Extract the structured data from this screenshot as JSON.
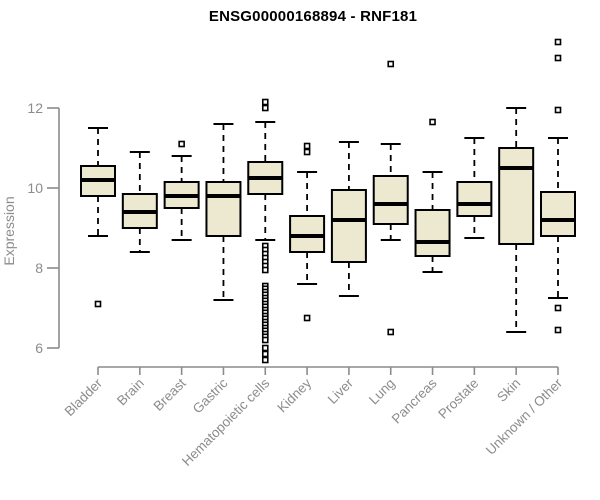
{
  "title": "ENSG00000168894 - RNF181",
  "style": {
    "box_fill": "#EDE8D0",
    "box_border": "#000000",
    "median_color": "#000000",
    "whisker_color": "#000000",
    "outlier_stroke": "#000000",
    "outlier_fill": "#FFFFFF",
    "axis_color": "#8C8C8C",
    "label_color": "#8C8C8C",
    "title_color": "#000000",
    "background": "#FFFFFF"
  },
  "chart_data": {
    "type": "boxplot",
    "title": "ENSG00000168894 - RNF181",
    "ylabel": "Expression",
    "xlabel": "",
    "grid": false,
    "legend": false,
    "yticks": [
      6,
      8,
      10,
      12
    ],
    "axis_ylim": [
      6,
      12
    ],
    "data_ylim": [
      5.7,
      13.65
    ],
    "categories": [
      "Bladder",
      "Brain",
      "Breast",
      "Gastric",
      "Hematopoietic cells",
      "Kidney",
      "Liver",
      "Lung",
      "Pancreas",
      "Prostate",
      "Skin",
      "Unknown / Other"
    ],
    "series": [
      {
        "name": "Bladder",
        "whisker_low": 8.8,
        "q1": 9.8,
        "median": 10.2,
        "q3": 10.55,
        "whisker_high": 11.5,
        "outliers": [
          7.1
        ]
      },
      {
        "name": "Brain",
        "whisker_low": 8.4,
        "q1": 9.0,
        "median": 9.4,
        "q3": 9.85,
        "whisker_high": 10.9,
        "outliers": []
      },
      {
        "name": "Breast",
        "whisker_low": 8.7,
        "q1": 9.5,
        "median": 9.8,
        "q3": 10.15,
        "whisker_high": 10.8,
        "outliers": [
          11.1
        ]
      },
      {
        "name": "Gastric",
        "whisker_low": 7.2,
        "q1": 8.8,
        "median": 9.8,
        "q3": 10.15,
        "whisker_high": 11.6,
        "outliers": []
      },
      {
        "name": "Hematopoietic cells",
        "whisker_low": 8.7,
        "q1": 9.85,
        "median": 10.25,
        "q3": 10.65,
        "whisker_high": 11.65,
        "outliers": [
          12.15,
          12.0,
          8.55,
          8.45,
          8.35,
          8.25,
          8.15,
          8.05,
          7.95,
          7.55,
          7.48,
          7.4,
          7.33,
          7.25,
          7.18,
          7.1,
          7.03,
          6.95,
          6.88,
          6.8,
          6.73,
          6.65,
          6.58,
          6.5,
          6.43,
          6.35,
          6.28,
          6.2,
          6.0,
          5.85,
          5.7
        ]
      },
      {
        "name": "Kidney",
        "whisker_low": 7.6,
        "q1": 8.4,
        "median": 8.8,
        "q3": 9.3,
        "whisker_high": 10.4,
        "outliers": [
          11.05,
          10.9,
          6.75
        ]
      },
      {
        "name": "Liver",
        "whisker_low": 7.3,
        "q1": 8.15,
        "median": 9.2,
        "q3": 9.95,
        "whisker_high": 11.15,
        "outliers": []
      },
      {
        "name": "Lung",
        "whisker_low": 8.7,
        "q1": 9.1,
        "median": 9.6,
        "q3": 10.3,
        "whisker_high": 11.1,
        "outliers": [
          13.1,
          6.4
        ]
      },
      {
        "name": "Pancreas",
        "whisker_low": 7.9,
        "q1": 8.3,
        "median": 8.65,
        "q3": 9.45,
        "whisker_high": 10.4,
        "outliers": [
          11.65
        ]
      },
      {
        "name": "Prostate",
        "whisker_low": 8.75,
        "q1": 9.3,
        "median": 9.6,
        "q3": 10.15,
        "whisker_high": 11.25,
        "outliers": []
      },
      {
        "name": "Skin",
        "whisker_low": 6.4,
        "q1": 8.6,
        "median": 10.5,
        "q3": 11.0,
        "whisker_high": 12.0,
        "outliers": []
      },
      {
        "name": "Unknown / Other",
        "whisker_low": 7.25,
        "q1": 8.8,
        "median": 9.2,
        "q3": 9.9,
        "whisker_high": 11.25,
        "outliers": [
          13.65,
          13.25,
          11.95,
          7.0,
          6.45
        ]
      }
    ]
  }
}
